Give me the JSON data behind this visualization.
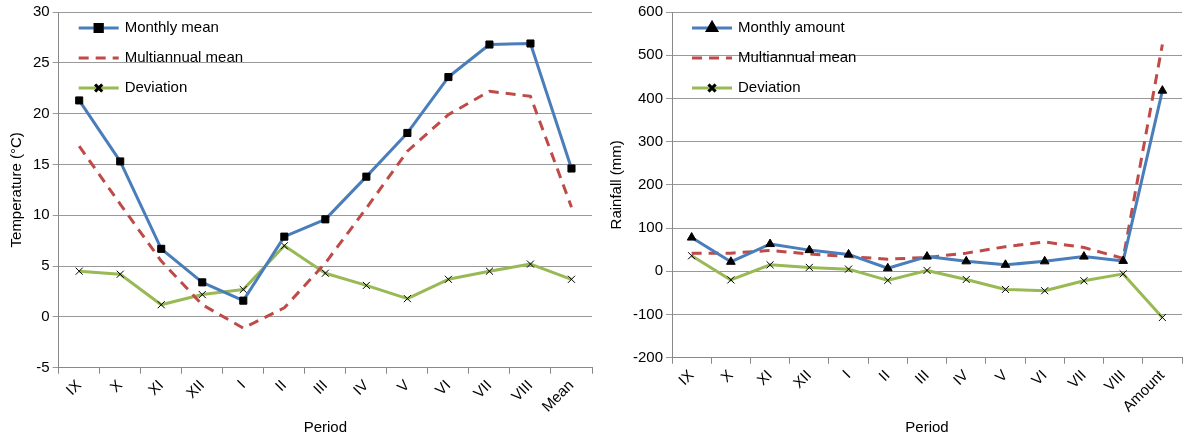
{
  "chart_data": [
    {
      "type": "line",
      "xlabel": "Period",
      "ylabel": "Temperature (°C)",
      "categories": [
        "IX",
        "X",
        "XI",
        "XII",
        "I",
        "II",
        "III",
        "IV",
        "V",
        "VI",
        "VII",
        "VIII",
        "Mean"
      ],
      "series": [
        {
          "name": "Monthly mean",
          "color": "#4a7ebb",
          "marker": "square",
          "line_style": "solid",
          "values": [
            21.3,
            15.3,
            6.7,
            3.4,
            1.6,
            7.9,
            9.6,
            13.8,
            18.1,
            23.6,
            26.8,
            26.9,
            14.6
          ]
        },
        {
          "name": "Multiannual mean",
          "color": "#be4b48",
          "marker": "none",
          "line_style": "dashed",
          "values": [
            16.8,
            11.1,
            5.5,
            1.2,
            -1.1,
            0.9,
            5.3,
            10.7,
            16.3,
            19.9,
            22.2,
            21.7,
            10.8
          ]
        },
        {
          "name": "Deviation",
          "color": "#98b954",
          "marker": "cross",
          "line_style": "solid",
          "values": [
            4.5,
            4.2,
            1.2,
            2.2,
            2.7,
            7.0,
            4.3,
            3.1,
            1.8,
            3.7,
            4.5,
            5.2,
            3.7
          ]
        }
      ],
      "ylim": [
        -5,
        30
      ],
      "yticks": [
        -5,
        0,
        5,
        10,
        15,
        20,
        25,
        30
      ],
      "grid": "y",
      "legend": "top left"
    },
    {
      "type": "line",
      "xlabel": "Period",
      "ylabel": "Rainfall (mm)",
      "categories": [
        "IX",
        "X",
        "XI",
        "XII",
        "I",
        "II",
        "III",
        "IV",
        "V",
        "VI",
        "VII",
        "VIII",
        "Amount"
      ],
      "series": [
        {
          "name": "Monthly amount",
          "color": "#4a7ebb",
          "marker": "triangle",
          "line_style": "solid",
          "values": [
            78,
            22,
            63,
            49,
            39,
            7,
            34,
            23,
            15,
            23,
            34,
            24,
            418
          ]
        },
        {
          "name": "Multiannual mean",
          "color": "#be4b48",
          "marker": "none",
          "line_style": "dashed",
          "values": [
            42,
            42,
            48,
            40,
            34,
            28,
            32,
            42,
            57,
            68,
            55,
            30,
            525
          ]
        },
        {
          "name": "Deviation",
          "color": "#98b954",
          "marker": "cross",
          "line_style": "solid",
          "values": [
            36,
            -20,
            15,
            9,
            5,
            -21,
            2,
            -19,
            -42,
            -45,
            -22,
            -6,
            -107
          ]
        }
      ],
      "ylim": [
        -200,
        600
      ],
      "yticks": [
        -200,
        -100,
        0,
        100,
        200,
        300,
        400,
        500,
        600
      ],
      "grid": "y",
      "legend": "top left"
    }
  ]
}
